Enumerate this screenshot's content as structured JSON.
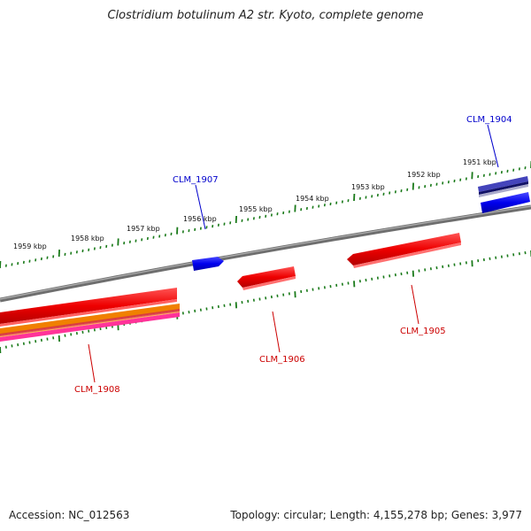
{
  "title": "Clostridium botulinum A2 str. Kyoto, complete genome",
  "footer": {
    "accession": "Accession: NC_012563",
    "summary": "Topology: circular; Length: 4,155,278 bp; Genes: 3,977"
  },
  "ruler": {
    "labels": [
      "1959 kbp",
      "1958 kbp",
      "1957 kbp",
      "1956 kbp",
      "1955 kbp",
      "1954 kbp",
      "1953 kbp",
      "1952 kbp",
      "1951 kbp"
    ],
    "tick_color": "#1a7a1a"
  },
  "genes": [
    {
      "id": "CLM_1904",
      "color": "#0000cc"
    },
    {
      "id": "CLM_1907",
      "color": "#0000cc"
    },
    {
      "id": "CLM_1905",
      "color": "#cc0000"
    },
    {
      "id": "CLM_1906",
      "color": "#cc0000"
    },
    {
      "id": "CLM_1908",
      "color": "#cc0000"
    }
  ],
  "colors": {
    "backbone": "#808080",
    "forward_gene": "#0000ee",
    "reverse_gene": "#ee0000",
    "orange_track": "#f08000",
    "pink_track": "#ff3399",
    "purple_track": "#4444bb"
  }
}
